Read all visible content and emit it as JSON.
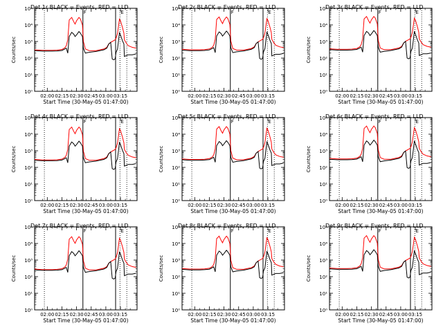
{
  "layout": {
    "rows": 3,
    "cols": 3
  },
  "colors": {
    "events": "#000000",
    "lld": "#ff0000",
    "axis": "#000000"
  },
  "shared": {
    "xticks": [
      {
        "t": 120,
        "label": "02:00"
      },
      {
        "t": 135,
        "label": "02:15"
      },
      {
        "t": 150,
        "label": "02:30"
      },
      {
        "t": 165,
        "label": "02:45"
      },
      {
        "t": 180,
        "label": "03:00"
      },
      {
        "t": 195,
        "label": "03:15"
      }
    ],
    "xlim_minutes": [
      107,
      212
    ],
    "ylim_log10": [
      0,
      5
    ],
    "yticks": [
      {
        "e": 0,
        "label": "10⁰"
      },
      {
        "e": 1,
        "label": "10¹"
      },
      {
        "e": 2,
        "label": "10²"
      },
      {
        "e": 3,
        "label": "10³"
      },
      {
        "e": 4,
        "label": "10⁴"
      },
      {
        "e": 5,
        "label": "10⁵"
      }
    ],
    "ylabel": "Counts/sec",
    "vlines": [
      {
        "t": 117,
        "style": "dotted"
      },
      {
        "t": 156.5,
        "style": "solid"
      },
      {
        "t": 190,
        "style": "solid"
      },
      {
        "t": 194.5,
        "style": "dotted"
      },
      {
        "t": 201.5,
        "style": "dotted"
      }
    ],
    "marker_labels": [
      {
        "t": 156.5,
        "label": "F"
      },
      {
        "t": 194.5,
        "label": "E"
      }
    ]
  },
  "chart_data": [
    {
      "type": "line",
      "title": "Det 1r BLACK = Events, RED = LLD",
      "xlabel": "Start Time (30-May-05 01:47:00)"
    },
    {
      "type": "line",
      "title": "Det 2r BLACK = Events, RED = LLD",
      "xlabel": "Start Time (30-May-05 01:47:00)"
    },
    {
      "type": "line",
      "title": "Det 3r BLACK = Events, RED = LLD",
      "xlabel": "Start Time (30-May-05 01:47:00)"
    },
    {
      "type": "line",
      "title": "Det 4r BLACK = Events, RED = LLD",
      "xlabel": "Start Time (30-May-05 01:47:00)"
    },
    {
      "type": "line",
      "title": "Det 5r BLACK = Events, RED = LLD",
      "xlabel": "Start Time (30-May-05 01:47:00)"
    },
    {
      "type": "line",
      "title": "Det 6r BLACK = Events, RED = LLD",
      "xlabel": "Start Time (30-May-05 01:47:00)"
    },
    {
      "type": "line",
      "title": "Det 7r BLACK = Events, RED = LLD",
      "xlabel": "Start Time (30-May-05 01:47:00)"
    },
    {
      "type": "line",
      "title": "Det 8r BLACK = Events, RED = LLD",
      "xlabel": "Start Time (30-May-05 01:47:00)"
    },
    {
      "type": "line",
      "title": "Det 9r BLACK = Events, RED = LLD",
      "xlabel": "Start Time (30-May-05 01:47:00)"
    }
  ],
  "series_template": {
    "events_minutes": [
      107,
      115,
      125,
      130,
      135,
      138,
      139.5,
      141,
      142.5,
      145,
      147,
      148.5,
      150,
      152.5,
      154,
      156,
      157,
      159,
      163,
      170,
      178,
      181,
      183,
      185,
      186.5,
      188,
      189.5,
      190.5,
      192,
      194,
      195,
      197,
      198.5,
      199,
      201,
      203,
      207,
      211
    ],
    "events_log10": [
      2.45,
      2.42,
      2.42,
      2.43,
      2.46,
      2.55,
      2.6,
      2.3,
      3.3,
      3.55,
      3.45,
      3.3,
      3.4,
      3.6,
      3.5,
      3.3,
      2.6,
      2.3,
      2.35,
      2.4,
      2.5,
      2.6,
      2.85,
      2.95,
      1.95,
      1.9,
      1.95,
      2.35,
      2.55,
      3.55,
      3.4,
      3.05,
      2.85,
      2.1,
      2.15,
      2.2,
      2.2,
      2.25
    ],
    "lld_minutes": [
      107,
      115,
      125,
      130,
      135,
      138,
      139.5,
      141,
      142.5,
      145,
      147,
      148.5,
      150,
      152.5,
      154,
      156,
      157,
      159,
      163,
      170,
      178,
      181,
      183,
      185,
      186.5,
      188,
      189.5,
      190.5,
      192,
      194,
      195,
      197,
      198.5,
      199,
      201,
      203,
      207,
      211
    ],
    "lld_log10": [
      2.5,
      2.47,
      2.47,
      2.48,
      2.52,
      2.62,
      2.75,
      3.1,
      4.3,
      4.45,
      4.2,
      4.05,
      4.25,
      4.45,
      4.35,
      4.0,
      3.0,
      2.55,
      2.45,
      2.45,
      2.55,
      2.65,
      2.85,
      2.95,
      3.0,
      3.05,
      3.1,
      3.2,
      3.5,
      4.35,
      4.25,
      3.85,
      3.5,
      3.1,
      2.9,
      2.75,
      2.65,
      2.6
    ]
  }
}
